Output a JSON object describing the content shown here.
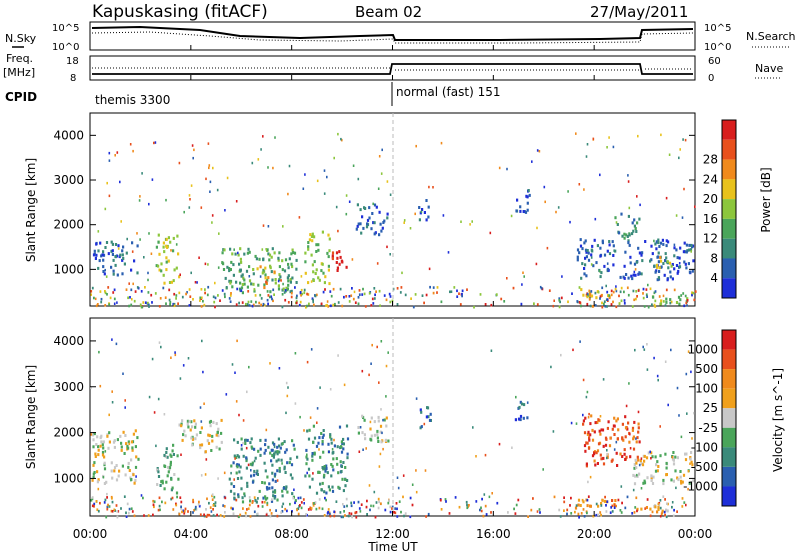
{
  "header": {
    "station": "Kapuskasing (fitACF)",
    "beam": "Beam 02",
    "date": "27/May/2011"
  },
  "labels": {
    "nsky": "N.Sky",
    "nsearch": "N.Search",
    "freq": "Freq.",
    "mhz": "[MHz]",
    "nave": "Nave",
    "cpid": "CPID",
    "cp1": "themis 3300",
    "cp2": "normal (fast) 151",
    "ylabel": "Slant Range [km]",
    "xlabel": "Time UT",
    "noise_tick_hi": "10^5",
    "noise_tick_lo": "10^0",
    "freq_tick_hi": "18",
    "freq_tick_lo": "8",
    "nave_tick_hi": "60",
    "nave_tick_lo": "0"
  },
  "chart_data": [
    {
      "type": "heatmap",
      "title": "",
      "xlabel": "Time UT",
      "ylabel": "Slant Range [km]",
      "x_ticks": [
        "00:00",
        "04:00",
        "08:00",
        "12:00",
        "16:00",
        "20:00",
        "00:00"
      ],
      "y_ticks": [
        1000,
        2000,
        3000,
        4000
      ],
      "ylim": [
        180,
        4500
      ],
      "xlim_hours": [
        0,
        24
      ],
      "colorbar": {
        "label": "Power [dB]",
        "ticks": [
          "4",
          "8",
          "12",
          "16",
          "20",
          "24",
          "28"
        ],
        "colors": [
          "#1e2fd8",
          "#2a5fb0",
          "#3a8a7a",
          "#4aa55a",
          "#8cc63c",
          "#e8c21c",
          "#f08a1c",
          "#e8501c",
          "#d81e1e"
        ]
      },
      "regions": [
        {
          "t0": 0.05,
          "t1": 1.9,
          "r0": 900,
          "r1": 1650,
          "level": 1
        },
        {
          "t0": 2.6,
          "t1": 3.5,
          "r0": 700,
          "r1": 1800,
          "level": 4
        },
        {
          "t0": 5.2,
          "t1": 8.2,
          "r0": 500,
          "r1": 1500,
          "level": 3
        },
        {
          "t0": 6.5,
          "t1": 7.3,
          "r0": 600,
          "r1": 1100,
          "level": 6
        },
        {
          "t0": 8.5,
          "t1": 9.5,
          "r0": 700,
          "r1": 1900,
          "level": 4
        },
        {
          "t0": 9.5,
          "t1": 10.2,
          "r0": 900,
          "r1": 1500,
          "level": 8
        },
        {
          "t0": 10.5,
          "t1": 11.8,
          "r0": 1800,
          "r1": 2500,
          "level": 1
        },
        {
          "t0": 13.0,
          "t1": 13.5,
          "r0": 2100,
          "r1": 2600,
          "level": 1
        },
        {
          "t0": 16.8,
          "t1": 17.4,
          "r0": 2300,
          "r1": 2800,
          "level": 1
        },
        {
          "t0": 19.3,
          "t1": 20.8,
          "r0": 800,
          "r1": 1700,
          "level": 1
        },
        {
          "t0": 20.8,
          "t1": 21.8,
          "r0": 1700,
          "r1": 2300,
          "level": 2
        },
        {
          "t0": 21.0,
          "t1": 23.9,
          "r0": 800,
          "r1": 1700,
          "level": 1
        },
        {
          "t0": 22.4,
          "t1": 23.1,
          "r0": 1000,
          "r1": 1300,
          "level": 5
        },
        {
          "t0": 19.2,
          "t1": 20.8,
          "r0": 400,
          "r1": 600,
          "level": 5
        },
        {
          "t0": 22.0,
          "t1": 23.9,
          "r0": 250,
          "r1": 450,
          "level": 4
        }
      ]
    },
    {
      "type": "heatmap",
      "title": "",
      "xlabel": "Time UT",
      "ylabel": "Slant Range [km]",
      "x_ticks": [
        "00:00",
        "04:00",
        "08:00",
        "12:00",
        "16:00",
        "20:00",
        "00:00"
      ],
      "y_ticks": [
        1000,
        2000,
        3000,
        4000
      ],
      "ylim": [
        180,
        4500
      ],
      "xlim_hours": [
        0,
        24
      ],
      "colorbar": {
        "label": "Velocity [m s^-1]",
        "ticks": [
          "1000",
          "500",
          "100",
          "25",
          "-25",
          "-100",
          "-500",
          "-1000"
        ],
        "colors": [
          "#1e2fd8",
          "#2a5fb0",
          "#3a8a7a",
          "#4aa55a",
          "#c8c8c8",
          "#f0a01c",
          "#f08a1c",
          "#e8501c",
          "#d81e1e"
        ]
      },
      "regions": [
        {
          "t0": 0.05,
          "t1": 1.9,
          "r0": 900,
          "r1": 2100,
          "level": 4
        },
        {
          "t0": 2.6,
          "t1": 3.5,
          "r0": 700,
          "r1": 1800,
          "level": 3
        },
        {
          "t0": 3.5,
          "t1": 5.2,
          "r0": 1600,
          "r1": 2300,
          "level": 4
        },
        {
          "t0": 5.5,
          "t1": 8.2,
          "r0": 500,
          "r1": 1900,
          "level": 2
        },
        {
          "t0": 8.5,
          "t1": 10.2,
          "r0": 700,
          "r1": 2200,
          "level": 2
        },
        {
          "t0": 10.5,
          "t1": 11.8,
          "r0": 1800,
          "r1": 2400,
          "level": 4
        },
        {
          "t0": 13.0,
          "t1": 13.5,
          "r0": 2100,
          "r1": 2600,
          "level": 1
        },
        {
          "t0": 16.8,
          "t1": 17.4,
          "r0": 2300,
          "r1": 2800,
          "level": 1
        },
        {
          "t0": 19.5,
          "t1": 21.8,
          "r0": 1300,
          "r1": 2400,
          "level": 7
        },
        {
          "t0": 21.5,
          "t1": 23.9,
          "r0": 900,
          "r1": 1600,
          "level": 4
        },
        {
          "t0": 19.2,
          "t1": 20.8,
          "r0": 380,
          "r1": 600,
          "level": 6
        },
        {
          "t0": 21.5,
          "t1": 23.0,
          "r0": 300,
          "r1": 500,
          "level": 5
        }
      ]
    }
  ]
}
